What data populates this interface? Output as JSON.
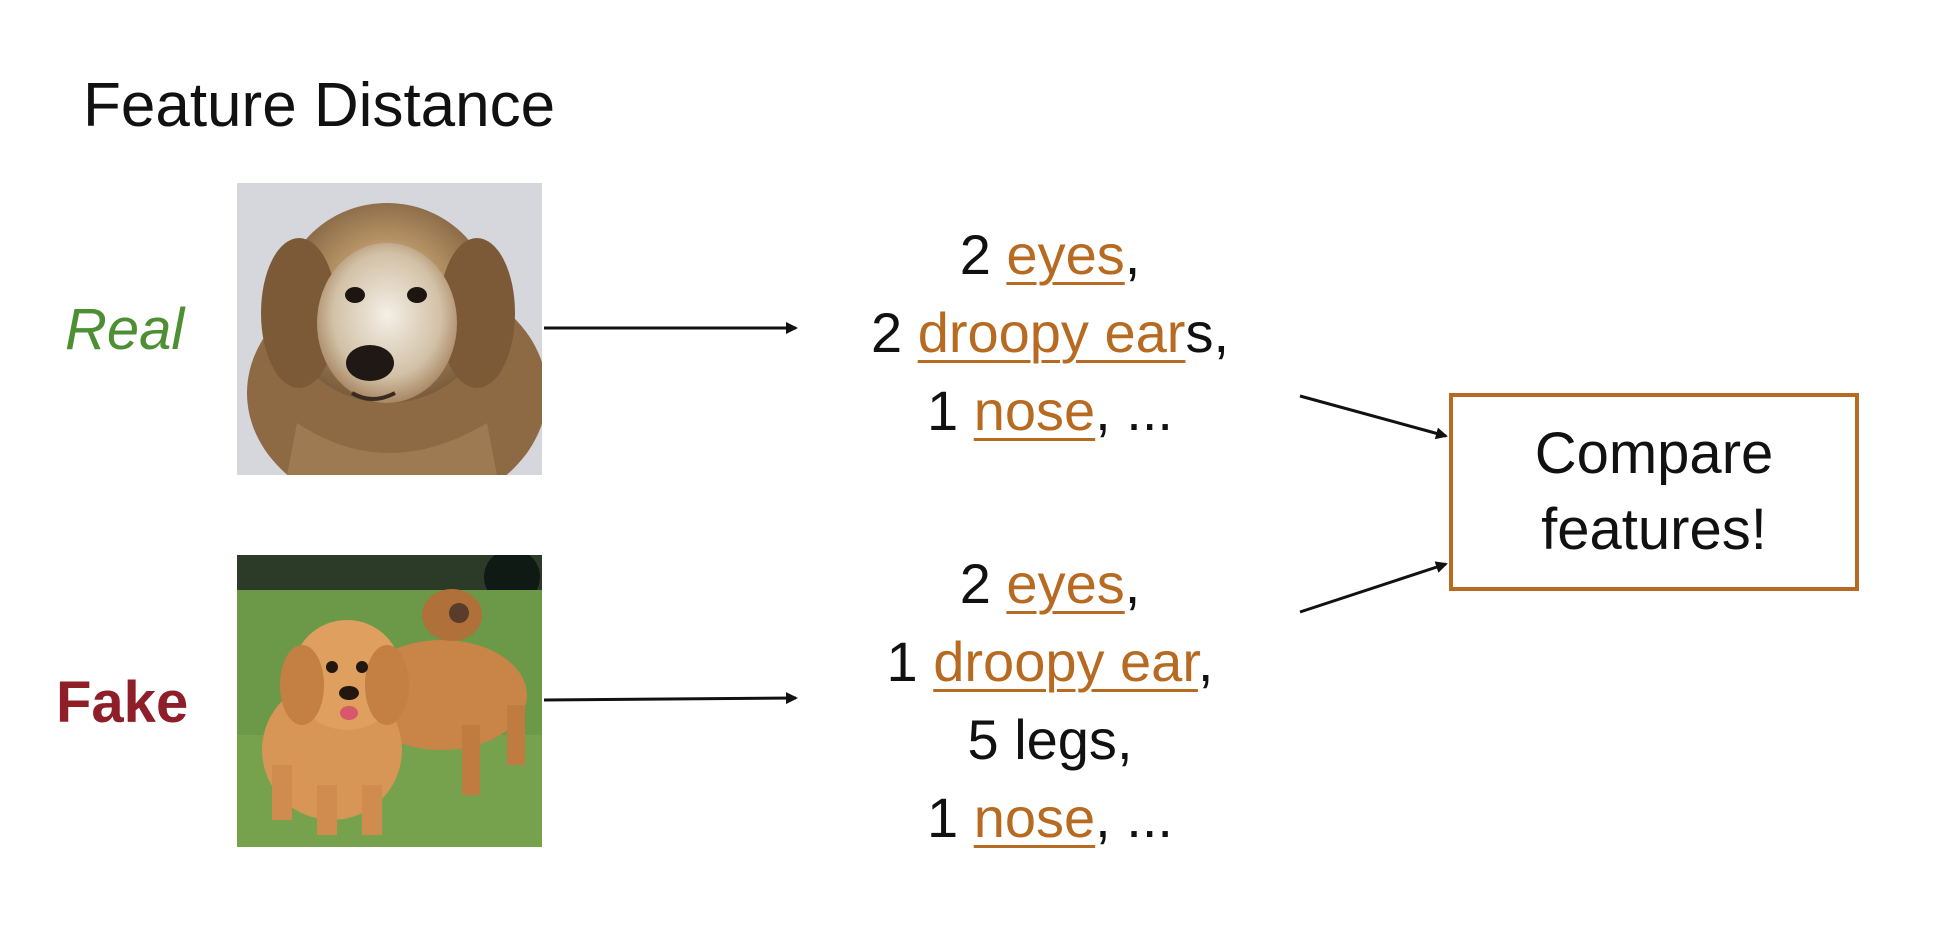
{
  "title": "Feature Distance",
  "real": {
    "label": "Real",
    "features": [
      {
        "count": "2",
        "name": "eyes",
        "suffix": ","
      },
      {
        "count": "2",
        "name": "droopy ear",
        "suffix": "s,"
      },
      {
        "count": "1",
        "name": "nose",
        "suffix": ", ..."
      }
    ]
  },
  "fake": {
    "label": "Fake",
    "features": [
      {
        "count": "2",
        "name": "eyes",
        "suffix": ","
      },
      {
        "count": "1",
        "name": "droopy ear",
        "suffix": ","
      },
      {
        "count": "5",
        "name": "",
        "plain": "legs",
        "suffix": ","
      },
      {
        "count": "1",
        "name": "nose",
        "suffix": ", ..."
      }
    ]
  },
  "compare": {
    "line1": "Compare",
    "line2": "features!"
  },
  "colors": {
    "real_label": "#4e8f34",
    "fake_label": "#8e1f28",
    "feature_highlight": "#b76a21",
    "box_border": "#b76a21"
  }
}
